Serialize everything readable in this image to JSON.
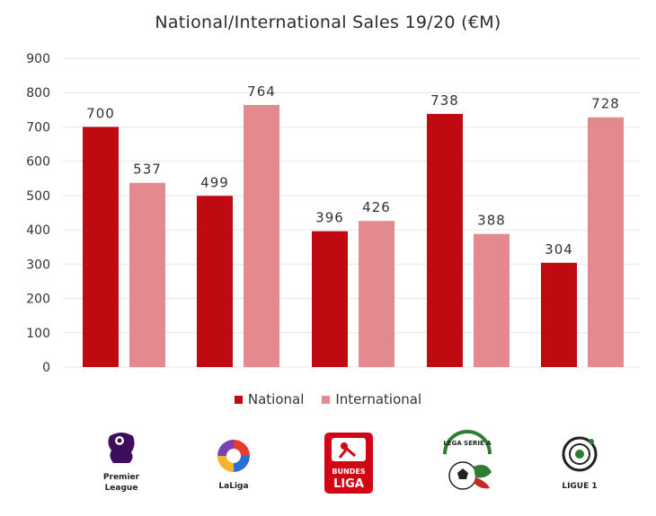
{
  "chart_data": {
    "type": "bar",
    "title": "National/International Sales 19/20 (€M)",
    "categories": [
      "Premier League",
      "LaLiga",
      "Bundesliga",
      "Serie A",
      "Ligue 1"
    ],
    "series": [
      {
        "name": "National",
        "values": [
          700,
          499,
          396,
          738,
          304
        ],
        "color": "#c00a12"
      },
      {
        "name": "International",
        "values": [
          537,
          764,
          426,
          388,
          728
        ],
        "color": "#e48a8f"
      }
    ],
    "data_labels": [
      [
        "700",
        "499",
        "396",
        "738",
        "304"
      ],
      [
        "537",
        "764",
        "426",
        "388",
        "728"
      ]
    ],
    "ylim": [
      0,
      900
    ],
    "yticks": [
      0,
      100,
      200,
      300,
      400,
      500,
      600,
      700,
      800,
      900
    ],
    "grid": true,
    "legend_position": "bottom"
  },
  "logos": [
    {
      "name": "premier-league",
      "text": [
        "Premier",
        "League"
      ]
    },
    {
      "name": "laliga",
      "text": [
        "LaLiga"
      ]
    },
    {
      "name": "bundesliga",
      "text": [
        "BUNDES",
        "LIGA"
      ]
    },
    {
      "name": "serie-a",
      "text": [
        "LEGA SERIE A"
      ]
    },
    {
      "name": "ligue-1",
      "text": [
        "LIGUE 1"
      ]
    }
  ]
}
